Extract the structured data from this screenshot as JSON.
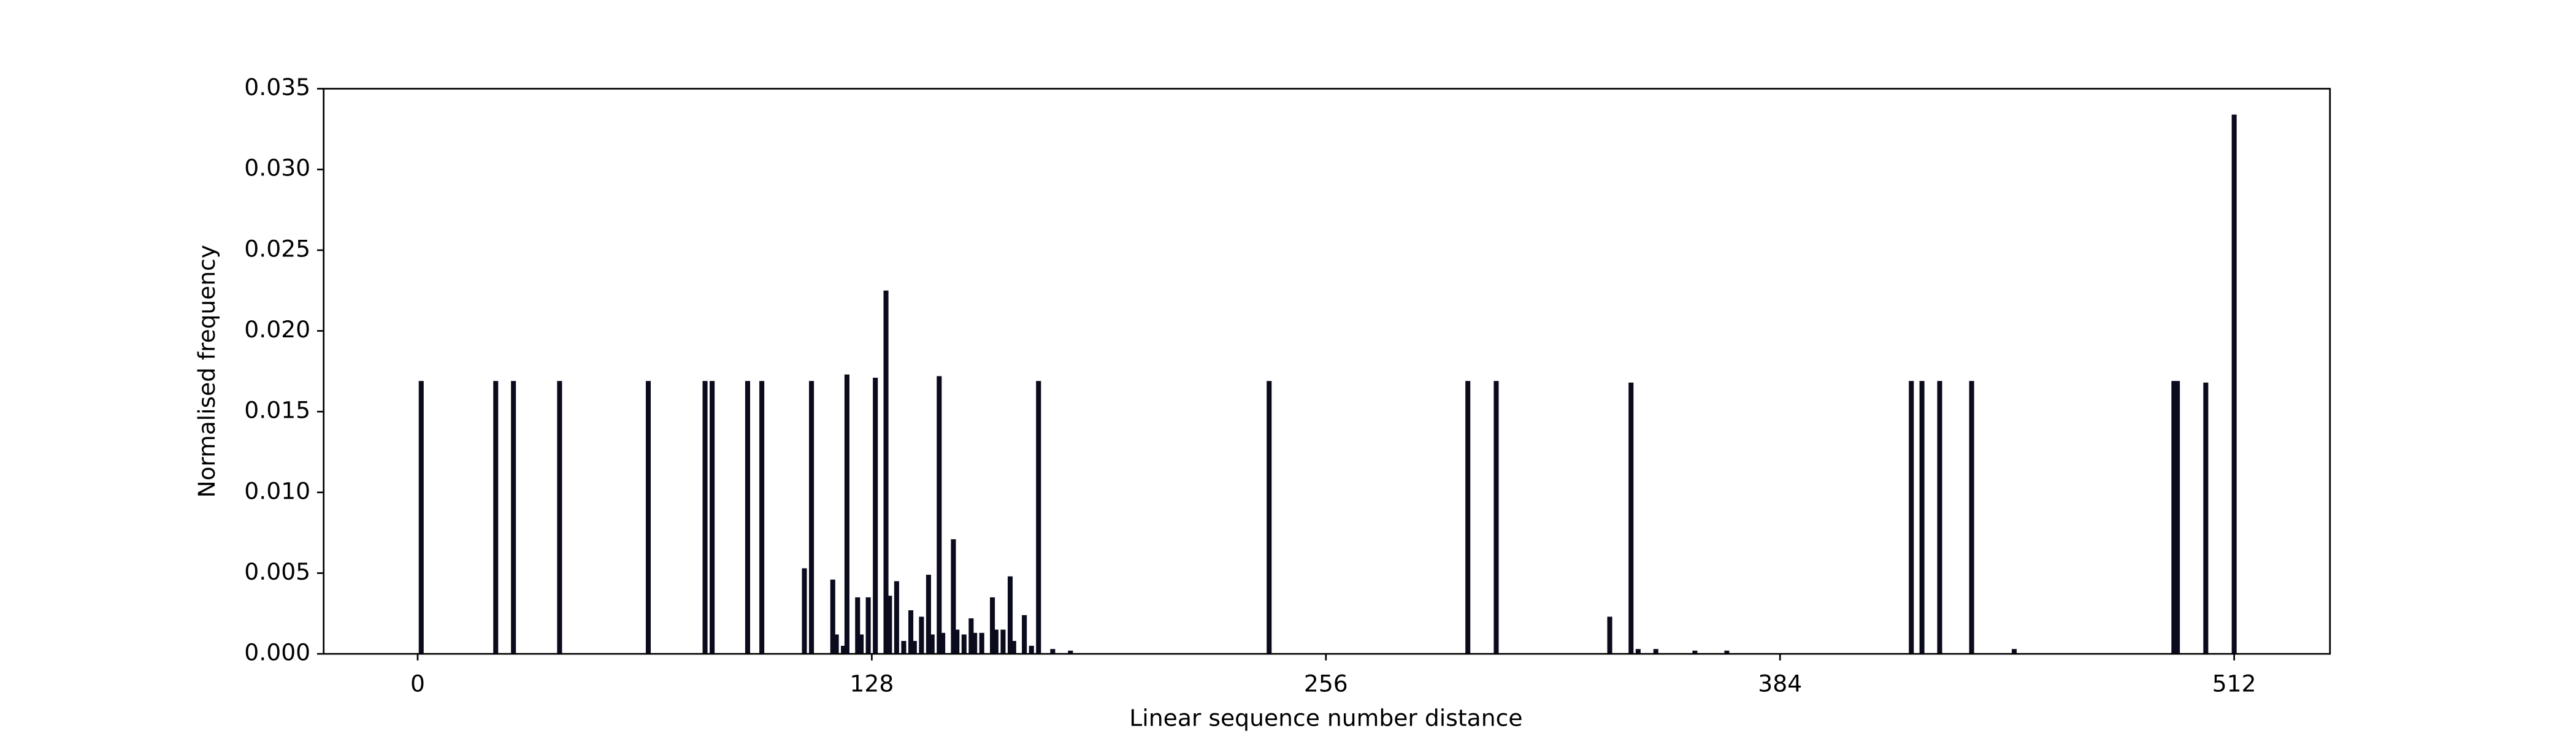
{
  "chart_data": {
    "type": "bar",
    "xlabel": "Linear sequence number distance",
    "ylabel": "Normalised frequency",
    "color": "#0b0b1e",
    "x": [
      1,
      22,
      27,
      40,
      65,
      81,
      83,
      93,
      97,
      109,
      111,
      117,
      118,
      120,
      121,
      124,
      125,
      127,
      129,
      132,
      133,
      135,
      137,
      139,
      140,
      142,
      144,
      145,
      147,
      148,
      151,
      152,
      154,
      156,
      157,
      159,
      162,
      163,
      165,
      167,
      168,
      171,
      173,
      175,
      179,
      184,
      240,
      296,
      304,
      336,
      342,
      344,
      349,
      360,
      369,
      421,
      424,
      429,
      438,
      450,
      495,
      496,
      504,
      512
    ],
    "values": [
      0.0169,
      0.0169,
      0.0169,
      0.0169,
      0.0169,
      0.0169,
      0.0169,
      0.0169,
      0.0169,
      0.0053,
      0.0169,
      0.0046,
      0.0012,
      0.0005,
      0.0173,
      0.0035,
      0.0012,
      0.0035,
      0.0171,
      0.0225,
      0.0036,
      0.0045,
      0.0008,
      0.0027,
      0.0008,
      0.0023,
      0.0049,
      0.0012,
      0.0172,
      0.0013,
      0.0071,
      0.0015,
      0.0012,
      0.0022,
      0.0013,
      0.0013,
      0.0035,
      0.0015,
      0.0015,
      0.0048,
      0.0008,
      0.0024,
      0.0005,
      0.0169,
      0.0003,
      0.0002,
      0.0169,
      0.0169,
      0.0169,
      0.0023,
      0.0168,
      0.0003,
      0.0003,
      0.0002,
      0.0002,
      0.0169,
      0.0169,
      0.0169,
      0.0169,
      0.0003,
      0.0169,
      0.0169,
      0.0168,
      0.0334
    ],
    "xlim": [
      -26.5,
      539
    ],
    "xticks": [
      0,
      128,
      256,
      384,
      512
    ],
    "ylim": [
      0,
      0.035
    ],
    "yticks": [
      {
        "value": 0,
        "label": "0.000"
      },
      {
        "value": 0.005,
        "label": "0.005"
      },
      {
        "value": 0.01,
        "label": "0.010"
      },
      {
        "value": 0.015,
        "label": "0.015"
      },
      {
        "value": 0.02,
        "label": "0.020"
      },
      {
        "value": 0.025,
        "label": "0.025"
      },
      {
        "value": 0.03,
        "label": "0.030"
      },
      {
        "value": 0.035,
        "label": "0.035"
      }
    ]
  }
}
